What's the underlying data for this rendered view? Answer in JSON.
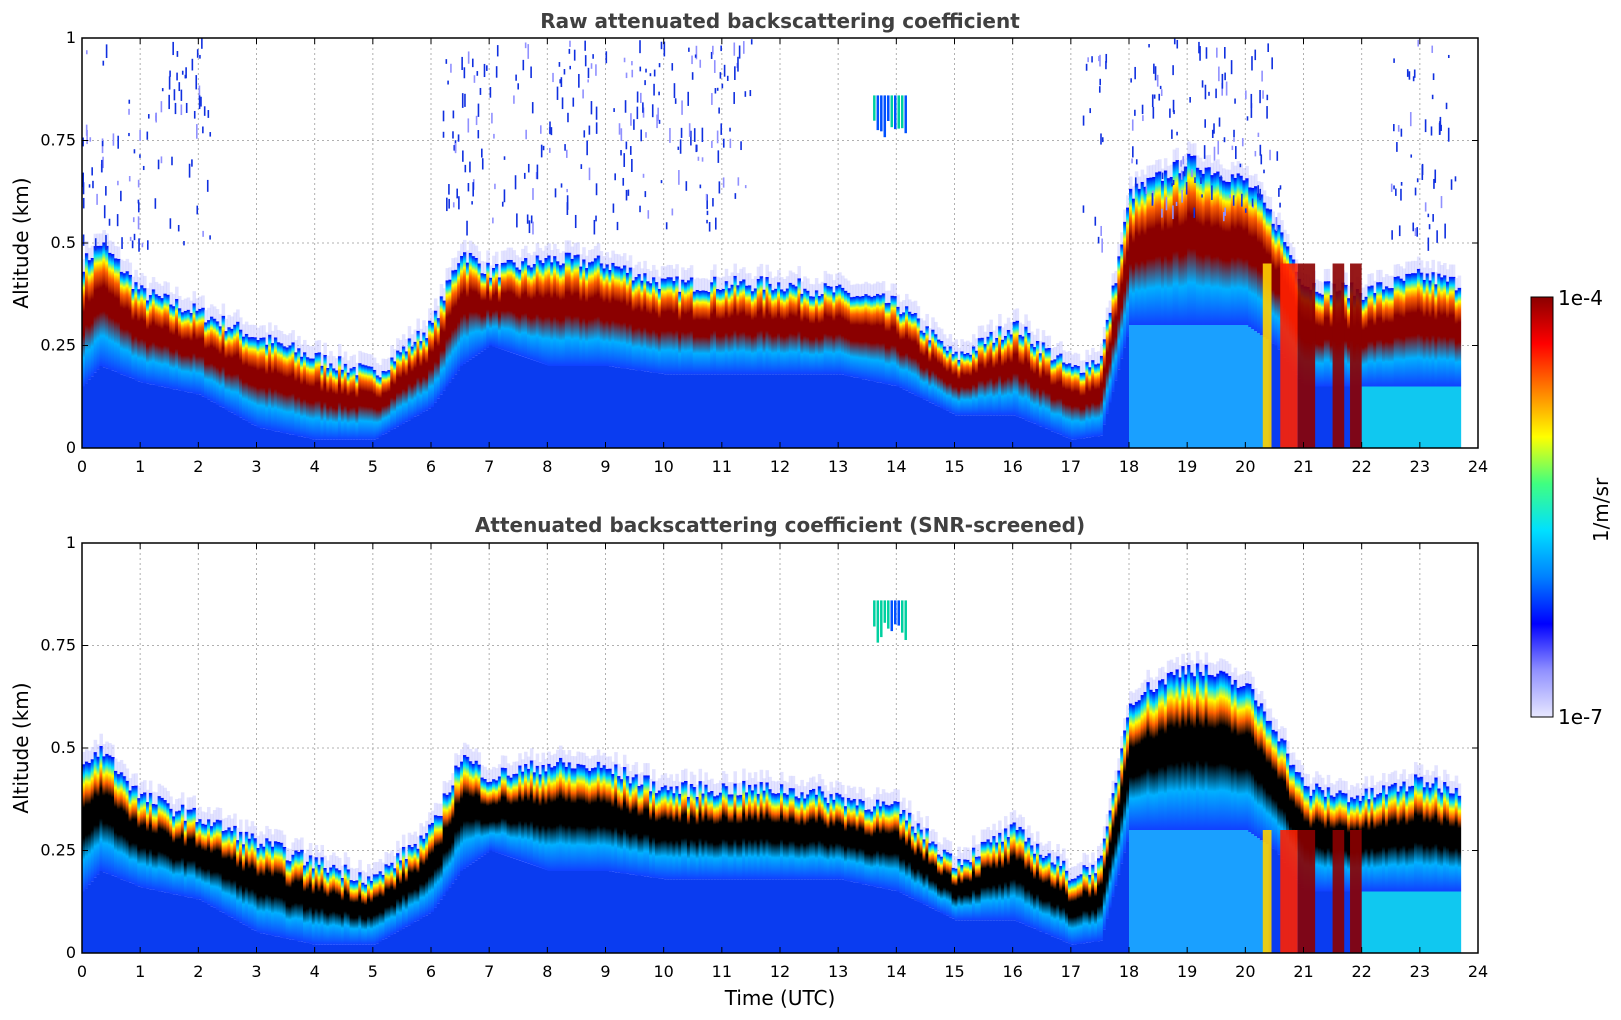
{
  "chart_data": [
    {
      "type": "heatmap",
      "title": "Raw attenuated backscattering coefficient",
      "xlabel": "",
      "ylabel": "Altitude (km)",
      "xlim": [
        0,
        24
      ],
      "ylim": [
        0,
        1
      ],
      "x_ticks": [
        "0",
        "1",
        "2",
        "3",
        "4",
        "5",
        "6",
        "7",
        "8",
        "9",
        "10",
        "11",
        "12",
        "13",
        "14",
        "15",
        "16",
        "17",
        "18",
        "19",
        "20",
        "21",
        "22",
        "23",
        "24"
      ],
      "y_ticks": [
        "0",
        "0.25",
        "0.5",
        "0.75",
        "1"
      ],
      "grid": true,
      "data_end_hour": 23.7,
      "layer_profile": {
        "hour": [
          0,
          0.3,
          1,
          2,
          3,
          4,
          5,
          6,
          6.5,
          7,
          8,
          9,
          10,
          11,
          12,
          13,
          14,
          15,
          16,
          17,
          17.5,
          18,
          19,
          20,
          20.5,
          21,
          22,
          23,
          23.7
        ],
        "layer_base_km": [
          0.15,
          0.2,
          0.16,
          0.13,
          0.05,
          0.02,
          0.02,
          0.1,
          0.2,
          0.25,
          0.2,
          0.2,
          0.18,
          0.18,
          0.18,
          0.18,
          0.15,
          0.08,
          0.08,
          0.02,
          0.03,
          0.3,
          0.3,
          0.3,
          0.25,
          0.15,
          0.15,
          0.15,
          0.15
        ],
        "layer_top_km": [
          0.45,
          0.5,
          0.38,
          0.33,
          0.27,
          0.22,
          0.18,
          0.3,
          0.48,
          0.43,
          0.46,
          0.45,
          0.4,
          0.4,
          0.4,
          0.38,
          0.35,
          0.22,
          0.3,
          0.19,
          0.22,
          0.62,
          0.7,
          0.65,
          0.55,
          0.4,
          0.38,
          0.42,
          0.4
        ]
      }
    },
    {
      "type": "heatmap",
      "title": "Attenuated backscattering coefficient (SNR-screened)",
      "xlabel": "Time (UTC)",
      "ylabel": "Altitude (km)",
      "xlim": [
        0,
        24
      ],
      "ylim": [
        0,
        1
      ],
      "x_ticks": [
        "0",
        "1",
        "2",
        "3",
        "4",
        "5",
        "6",
        "7",
        "8",
        "9",
        "10",
        "11",
        "12",
        "13",
        "14",
        "15",
        "16",
        "17",
        "18",
        "19",
        "20",
        "21",
        "22",
        "23",
        "24"
      ],
      "y_ticks": [
        "0",
        "0.25",
        "0.5",
        "0.75",
        "1"
      ],
      "grid": true,
      "data_end_hour": 23.7
    }
  ],
  "colorbar": {
    "label": "1/m/sr",
    "max_label": "1e-4",
    "min_label": "1e-7",
    "stops": [
      "#e8e8ff",
      "#9090ff",
      "#0000ff",
      "#0080ff",
      "#00e0ff",
      "#40ff80",
      "#ffff00",
      "#ff8000",
      "#ff0000",
      "#8b0000"
    ]
  },
  "colors": {
    "background_signal": "#0a3cf0",
    "screened_core": "#000000",
    "dense_layer": "#8b0000"
  }
}
